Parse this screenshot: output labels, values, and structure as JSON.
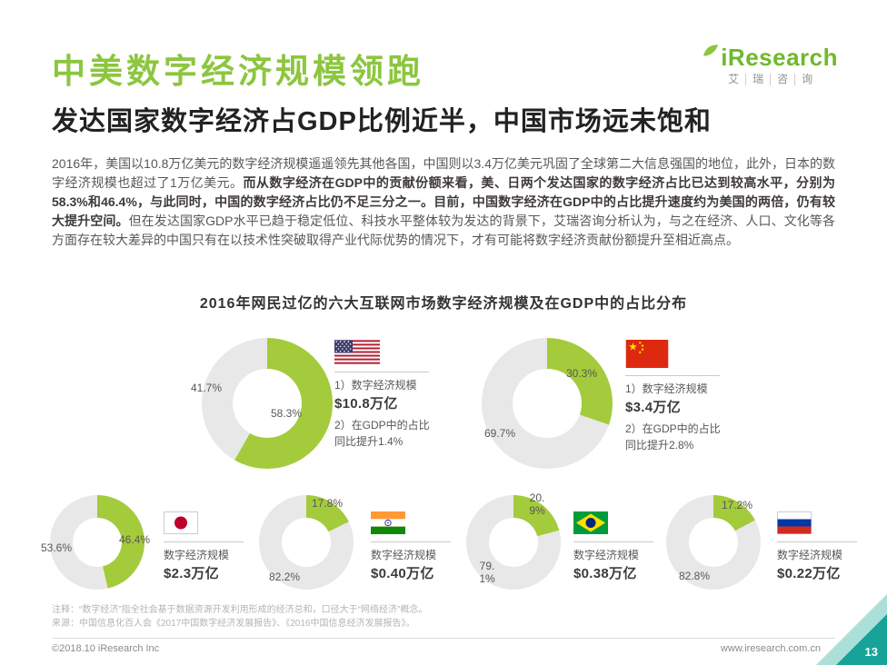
{
  "header": {
    "title": "中美数字经济规模领跑",
    "subtitle": "发达国家数字经济占GDP比例近半，中国市场远未饱和",
    "logo": {
      "brand": "iResearch",
      "cn_chars": [
        "艾",
        "瑞",
        "咨",
        "询"
      ]
    }
  },
  "paragraph": {
    "segments": [
      {
        "bold": false,
        "text": "2016年，美国以10.8万亿美元的数字经济规模遥遥领先其他各国，中国则以3.4万亿美元巩固了全球第二大信息强国的地位，此外，日本的数字经济规模也超过了1万亿美元。"
      },
      {
        "bold": true,
        "text": "而从数字经济在GDP中的贡献份额来看，美、日两个发达国家的数字经济占比已达到较高水平，分别为58.3%和46.4%，与此同时，中国的数字经济占比仍不足三分之一。目前，中国数字经济在GDP中的占比提升速度约为美国的两倍，仍有较大提升空间。"
      },
      {
        "bold": false,
        "text": "但在发达国家GDP水平已趋于稳定低位、科技水平整体较为发达的背景下，艾瑞咨询分析认为，与之在经济、人口、文化等各方面存在较大差异的中国只有在以技术性突破取得产业代际优势的情况下，才有可能将数字经济贡献份额提升至相近高点。"
      }
    ]
  },
  "chart_data": {
    "type": "pie",
    "title": "2016年网民过亿的六大互联网市场数字经济规模及在GDP中的占比分布",
    "unit": "%",
    "colors": {
      "share": "#A3CB3B",
      "rest": "#E8E8E8"
    },
    "markets": [
      {
        "country": "美国",
        "flag": "us-flag",
        "share_pct": 58.3,
        "rest_pct": 41.7,
        "share_label": "58.3%",
        "rest_label": "41.7%",
        "label1": "1）数字经济规模",
        "value1": "$10.8万亿",
        "label2": "2）在GDP中的占比",
        "value2": "同比提升1.4%"
      },
      {
        "country": "中国",
        "flag": "china-flag",
        "share_pct": 30.3,
        "rest_pct": 69.7,
        "share_label": "30.3%",
        "rest_label": "69.7%",
        "label1": "1）数字经济规模",
        "value1": "$3.4万亿",
        "label2": "2）在GDP中的占比",
        "value2": "同比提升2.8%"
      },
      {
        "country": "日本",
        "flag": "japan-flag",
        "share_pct": 46.4,
        "rest_pct": 53.6,
        "share_label": "46.4%",
        "rest_label": "53.6%",
        "label1": "数字经济规模",
        "value1": "$2.3万亿"
      },
      {
        "country": "印度",
        "flag": "india-flag",
        "share_pct": 17.8,
        "rest_pct": 82.2,
        "share_label": "17.8%",
        "rest_label": "82.2%",
        "label1": "数字经济规模",
        "value1": "$0.40万亿"
      },
      {
        "country": "巴西",
        "flag": "brazil-flag",
        "share_pct": 20.9,
        "rest_pct": 79.1,
        "share_label": "20.9%",
        "rest_label": "79.1%",
        "label1": "数字经济规模",
        "value1": "$0.38万亿"
      },
      {
        "country": "俄罗斯",
        "flag": "russia-flag",
        "share_pct": 17.2,
        "rest_pct": 82.8,
        "share_label": "17.2%",
        "rest_label": "82.8%",
        "label1": "数字经济规模",
        "value1": "$0.22万亿"
      }
    ]
  },
  "notes": {
    "annotation": "注释：“数字经济”指全社会基于数据资源开发利用形成的经济总和，口径大于“网络经济”概念。",
    "source": "来源：中国信息化百人会《2017中国数字经济发展报告》、《2016中国信息经济发展报告》。"
  },
  "footer": {
    "copyright": "©2018.10 iResearch Inc",
    "website": "www.iresearch.com.cn",
    "page_number": "13"
  }
}
